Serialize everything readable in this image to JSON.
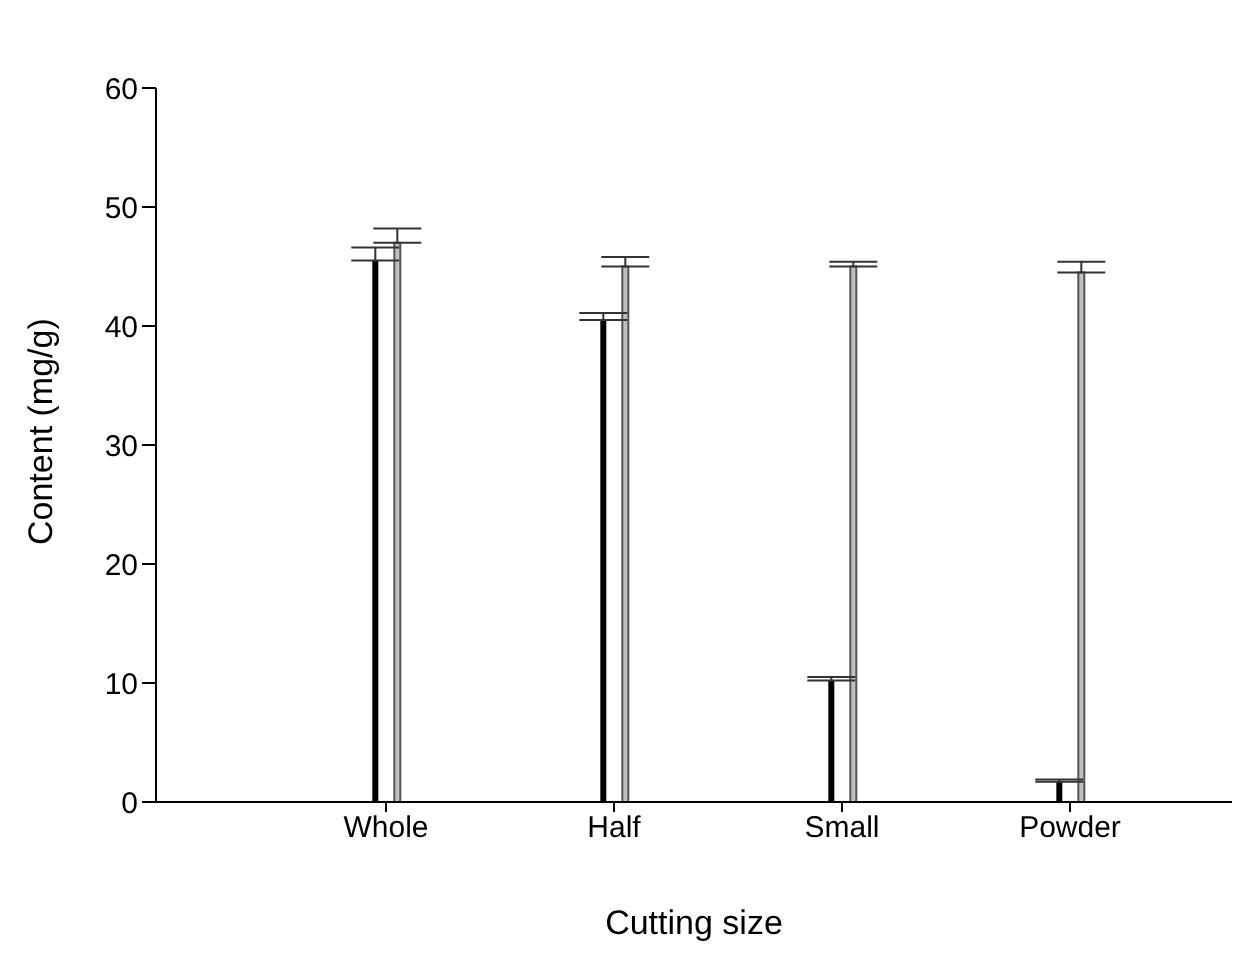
{
  "chart_data": {
    "type": "bar",
    "xlabel": "Cutting size",
    "ylabel": "Content (mg/g)",
    "categories": [
      "Whole",
      "Half",
      "Small",
      "Powder"
    ],
    "series": [
      {
        "color": "#000000",
        "values": [
          45.5,
          40.5,
          10.2,
          1.7
        ],
        "errors": [
          1.1,
          0.6,
          0.3,
          0.2
        ]
      },
      {
        "color": "#c0c0c0",
        "values": [
          47,
          45,
          45,
          44.5
        ],
        "errors": [
          1.2,
          0.8,
          0.4,
          0.9
        ]
      }
    ],
    "ylim": [
      0,
      60
    ],
    "yticks": [
      0,
      10,
      20,
      30,
      40,
      50,
      60
    ],
    "grid": false,
    "legend": false
  }
}
